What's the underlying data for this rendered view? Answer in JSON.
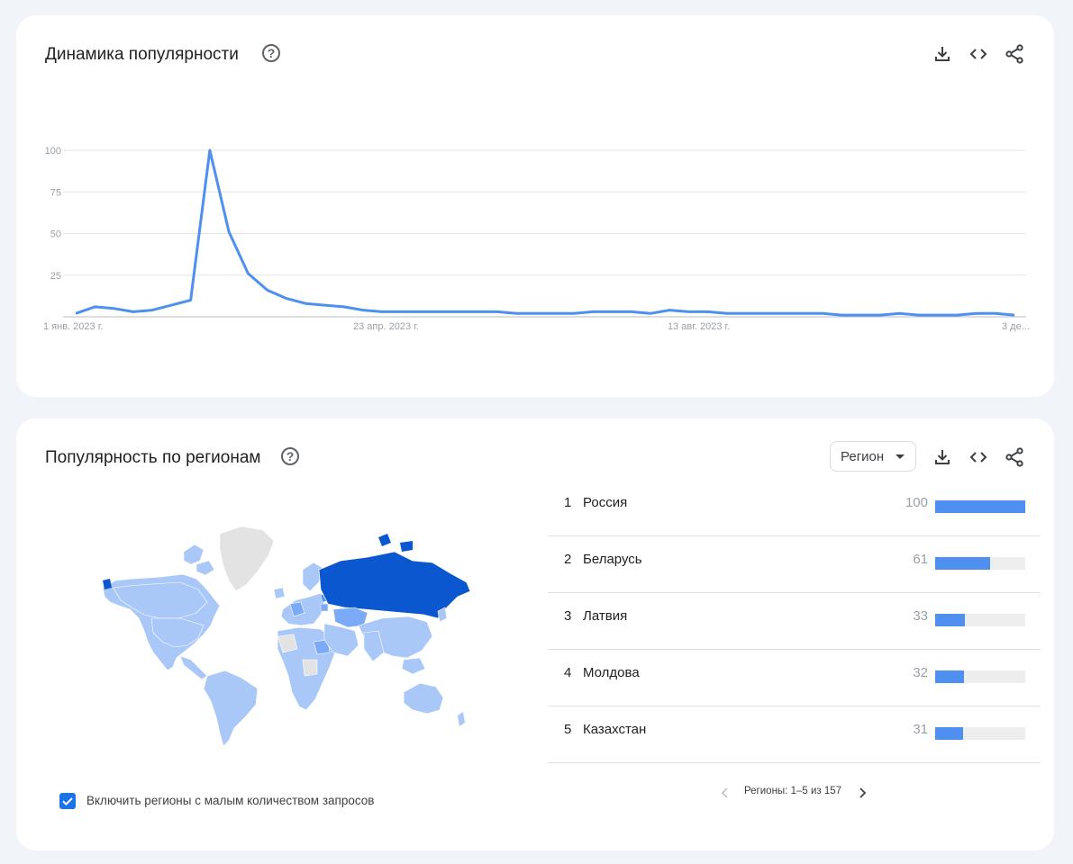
{
  "trend": {
    "title": "Динамика популярности",
    "help_glyph": "?"
  },
  "chart_data": {
    "type": "line",
    "ylim": [
      0,
      100
    ],
    "yticks": [
      25,
      50,
      75,
      100
    ],
    "grid": true,
    "x_tick_labels": [
      "1 янв. 2023 г.",
      "23 апр. 2023 г.",
      "13 авг. 2023 г.",
      "3 де..."
    ],
    "color": "#4e8ff0",
    "values": [
      2,
      6,
      5,
      3,
      4,
      7,
      10,
      100,
      51,
      26,
      16,
      11,
      8,
      7,
      6,
      4,
      3,
      3,
      3,
      3,
      3,
      3,
      3,
      2,
      2,
      2,
      2,
      3,
      3,
      3,
      2,
      4,
      3,
      3,
      2,
      2,
      2,
      2,
      2,
      2,
      1,
      1,
      1,
      2,
      1,
      1,
      1,
      2,
      2,
      1
    ]
  },
  "regions": {
    "title": "Популярность по регионам",
    "help_glyph": "?",
    "select_label": "Регион",
    "items": [
      {
        "rank": "1",
        "name": "Россия",
        "value": "100",
        "pct": 100
      },
      {
        "rank": "2",
        "name": "Беларусь",
        "value": "61",
        "pct": 61
      },
      {
        "rank": "3",
        "name": "Латвия",
        "value": "33",
        "pct": 33
      },
      {
        "rank": "4",
        "name": "Молдова",
        "value": "32",
        "pct": 32
      },
      {
        "rank": "5",
        "name": "Казахстан",
        "value": "31",
        "pct": 31
      }
    ],
    "pager_text": "Регионы: 1–5 из 157",
    "checkbox_label": "Включить регионы с малым количеством запросов",
    "colors": {
      "max": "#0b57d0",
      "mid": "#7baaf7",
      "low": "#a9c8f8",
      "none": "#e3e3e3",
      "bar": "#4e8ff0"
    }
  },
  "icons": [
    "help-icon",
    "download-icon",
    "embed-icon",
    "share-icon",
    "chevron-left-icon",
    "chevron-right-icon",
    "checkbox-checked-icon"
  ]
}
